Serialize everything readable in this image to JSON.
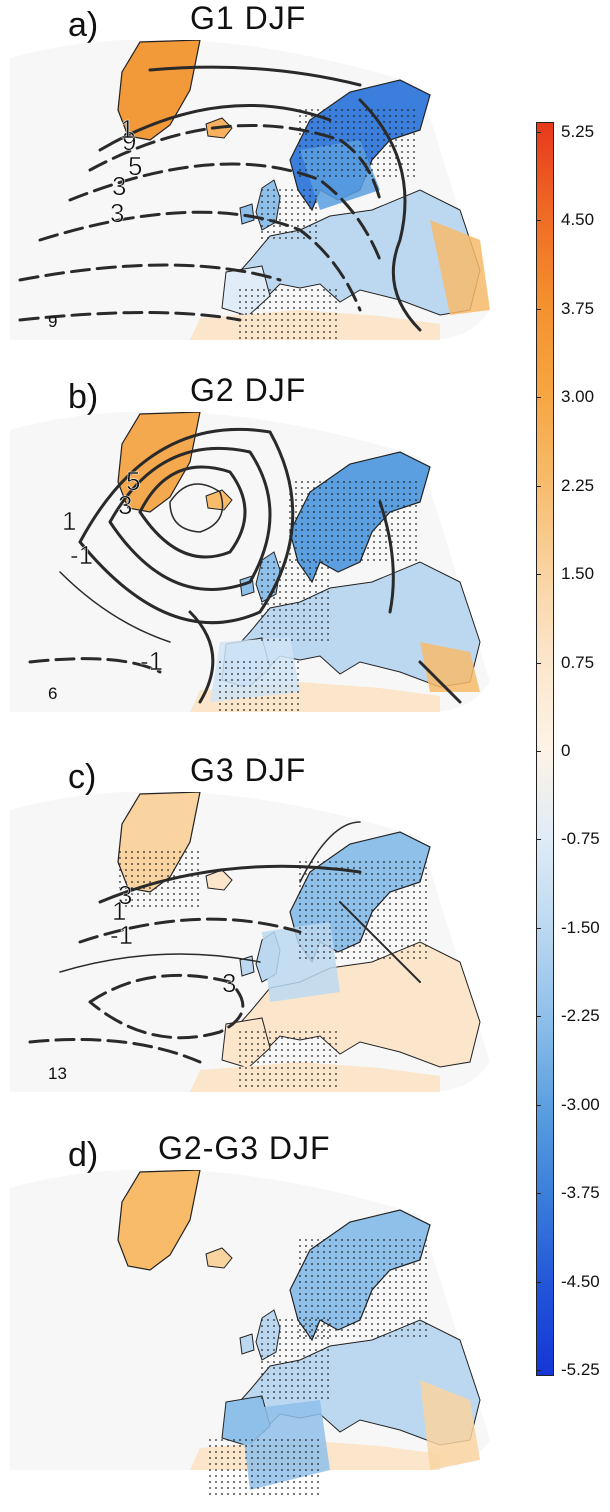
{
  "panels": [
    {
      "letter": "a)",
      "title": "G1  DJF",
      "count": "9",
      "contour_labels": [
        "9",
        "5",
        "3",
        "3",
        "1"
      ]
    },
    {
      "letter": "b)",
      "title": "G2  DJF",
      "count": "6",
      "contour_labels": [
        "5",
        "3",
        "1",
        "-1",
        "-1"
      ]
    },
    {
      "letter": "c)",
      "title": "G3  DJF",
      "count": "13",
      "contour_labels": [
        "3",
        "1",
        "-1",
        "3"
      ]
    },
    {
      "letter": "d)",
      "title": "G2-G3  DJF",
      "count": "",
      "contour_labels": []
    }
  ],
  "colorbar": {
    "labels": [
      "5.25",
      "4.50",
      "3.75",
      "3.00",
      "2.25",
      "1.50",
      "0.75",
      "0",
      "-0.75",
      "-1.50",
      "-2.25",
      "-3.00",
      "-3.75",
      "-4.50",
      "-5.25"
    ],
    "colors": [
      "#e8381c",
      "#ef6a24",
      "#f4902e",
      "#f6a540",
      "#f7bb6a",
      "#f9d3a0",
      "#fbe6cc",
      "#fdf3e6",
      "#e0ecf7",
      "#bcd8f0",
      "#8fc0ea",
      "#5b9fe0",
      "#3b7edb",
      "#2255d8",
      "#1436d6"
    ]
  }
}
